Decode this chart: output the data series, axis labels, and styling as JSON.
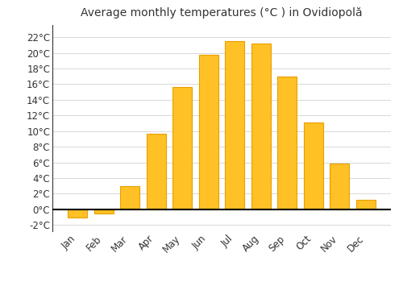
{
  "title": "Average monthly temperatures (°C ) in Ovidiopolă",
  "months": [
    "Jan",
    "Feb",
    "Mar",
    "Apr",
    "May",
    "Jun",
    "Jul",
    "Aug",
    "Sep",
    "Oct",
    "Nov",
    "Dec"
  ],
  "values": [
    -1.0,
    -0.5,
    3.0,
    9.7,
    15.6,
    19.7,
    21.5,
    21.2,
    17.0,
    11.1,
    5.8,
    1.2
  ],
  "bar_color": "#FFC125",
  "bar_edge_color": "#E8A000",
  "background_color": "#ffffff",
  "grid_color": "#d8d8d8",
  "ytick_labels": [
    "-2°C",
    "0°C",
    "2°C",
    "4°C",
    "6°C",
    "8°C",
    "10°C",
    "12°C",
    "14°C",
    "16°C",
    "18°C",
    "20°C",
    "22°C"
  ],
  "ytick_values": [
    -2,
    0,
    2,
    4,
    6,
    8,
    10,
    12,
    14,
    16,
    18,
    20,
    22
  ],
  "ylim": [
    -2.8,
    23.5
  ],
  "title_fontsize": 10,
  "tick_fontsize": 8.5,
  "bar_width": 0.75
}
